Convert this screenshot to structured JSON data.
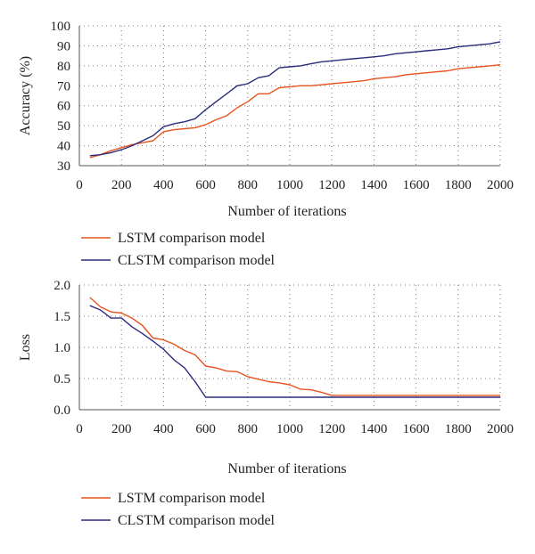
{
  "colors": {
    "lstm": "#e8531f",
    "clstm": "#2b2b7d",
    "grid": "#7a7a7a",
    "axis": "#555555"
  },
  "chart_data": [
    {
      "type": "line",
      "xlabel": "Number of iterations",
      "ylabel": "Accuracy (%)",
      "xlim": [
        0,
        2000
      ],
      "ylim": [
        30,
        100
      ],
      "xticks": [
        "0",
        "200",
        "400",
        "600",
        "800",
        "1000",
        "1200",
        "1400",
        "1600",
        "1800",
        "2000"
      ],
      "yticks": [
        "30",
        "40",
        "50",
        "60",
        "70",
        "80",
        "90",
        "100"
      ],
      "grid": true,
      "legend_position": "below",
      "series": [
        {
          "name": "LSTM comparison model",
          "x": [
            50,
            100,
            150,
            200,
            250,
            300,
            350,
            400,
            450,
            500,
            550,
            600,
            650,
            700,
            750,
            800,
            850,
            900,
            950,
            1000,
            1050,
            1100,
            1150,
            1200,
            1250,
            1300,
            1350,
            1400,
            1450,
            1500,
            1550,
            1600,
            1650,
            1700,
            1750,
            1800,
            1850,
            1900,
            1950,
            2000
          ],
          "y": [
            34,
            35.5,
            37.5,
            39,
            40.5,
            41.5,
            42.5,
            47,
            48,
            48.5,
            49,
            50.5,
            53,
            55,
            59,
            62,
            66,
            66,
            69,
            69.5,
            70,
            70,
            70.5,
            71,
            71.5,
            72,
            72.5,
            73.5,
            74,
            74.5,
            75.5,
            76,
            76.5,
            77,
            77.5,
            78.5,
            79,
            79.5,
            80,
            80.5
          ]
        },
        {
          "name": "CLSTM comparison model",
          "x": [
            50,
            100,
            150,
            200,
            250,
            300,
            350,
            400,
            450,
            500,
            550,
            600,
            650,
            700,
            750,
            800,
            850,
            900,
            950,
            1000,
            1050,
            1100,
            1150,
            1200,
            1250,
            1300,
            1350,
            1400,
            1450,
            1500,
            1550,
            1600,
            1650,
            1700,
            1750,
            1800,
            1850,
            1900,
            1950,
            2000
          ],
          "y": [
            35,
            35.5,
            36.5,
            38,
            40,
            42.5,
            45,
            49.5,
            51,
            52,
            53.5,
            58,
            62,
            66,
            70,
            71,
            74,
            75,
            79,
            79.5,
            80,
            81,
            82,
            82.5,
            83,
            83.5,
            84,
            84.5,
            85,
            86,
            86.5,
            87,
            87.5,
            88,
            88.5,
            89.5,
            90,
            90.5,
            91,
            92
          ]
        }
      ]
    },
    {
      "type": "line",
      "xlabel": "Number of iterations",
      "ylabel": "Loss",
      "xlim": [
        0,
        2000
      ],
      "ylim": [
        0,
        2.0
      ],
      "xticks": [
        "0",
        "200",
        "400",
        "600",
        "800",
        "1000",
        "1200",
        "1400",
        "1600",
        "1800",
        "2000"
      ],
      "yticks": [
        "0.0",
        "0.5",
        "1.0",
        "1.5",
        "2.0"
      ],
      "grid": true,
      "legend_position": "below",
      "series": [
        {
          "name": "LSTM comparison model",
          "x": [
            50,
            100,
            150,
            200,
            250,
            300,
            350,
            400,
            450,
            500,
            550,
            600,
            650,
            700,
            750,
            800,
            850,
            900,
            950,
            1000,
            1050,
            1100,
            1150,
            1200,
            1300,
            1400,
            1500,
            1600,
            1700,
            1800,
            1900,
            2000
          ],
          "y": [
            1.8,
            1.65,
            1.57,
            1.55,
            1.47,
            1.35,
            1.15,
            1.12,
            1.05,
            0.95,
            0.88,
            0.7,
            0.67,
            0.62,
            0.61,
            0.53,
            0.49,
            0.45,
            0.43,
            0.4,
            0.33,
            0.32,
            0.28,
            0.23,
            0.23,
            0.23,
            0.23,
            0.23,
            0.23,
            0.23,
            0.23,
            0.23
          ]
        },
        {
          "name": "CLSTM comparison model",
          "x": [
            50,
            100,
            150,
            200,
            250,
            300,
            350,
            400,
            450,
            500,
            550,
            600,
            700,
            800,
            1000,
            1200,
            1400,
            1600,
            1800,
            2000
          ],
          "y": [
            1.67,
            1.6,
            1.47,
            1.47,
            1.33,
            1.22,
            1.1,
            0.97,
            0.8,
            0.67,
            0.45,
            0.2,
            0.2,
            0.2,
            0.2,
            0.2,
            0.2,
            0.2,
            0.2,
            0.2
          ]
        }
      ]
    }
  ]
}
